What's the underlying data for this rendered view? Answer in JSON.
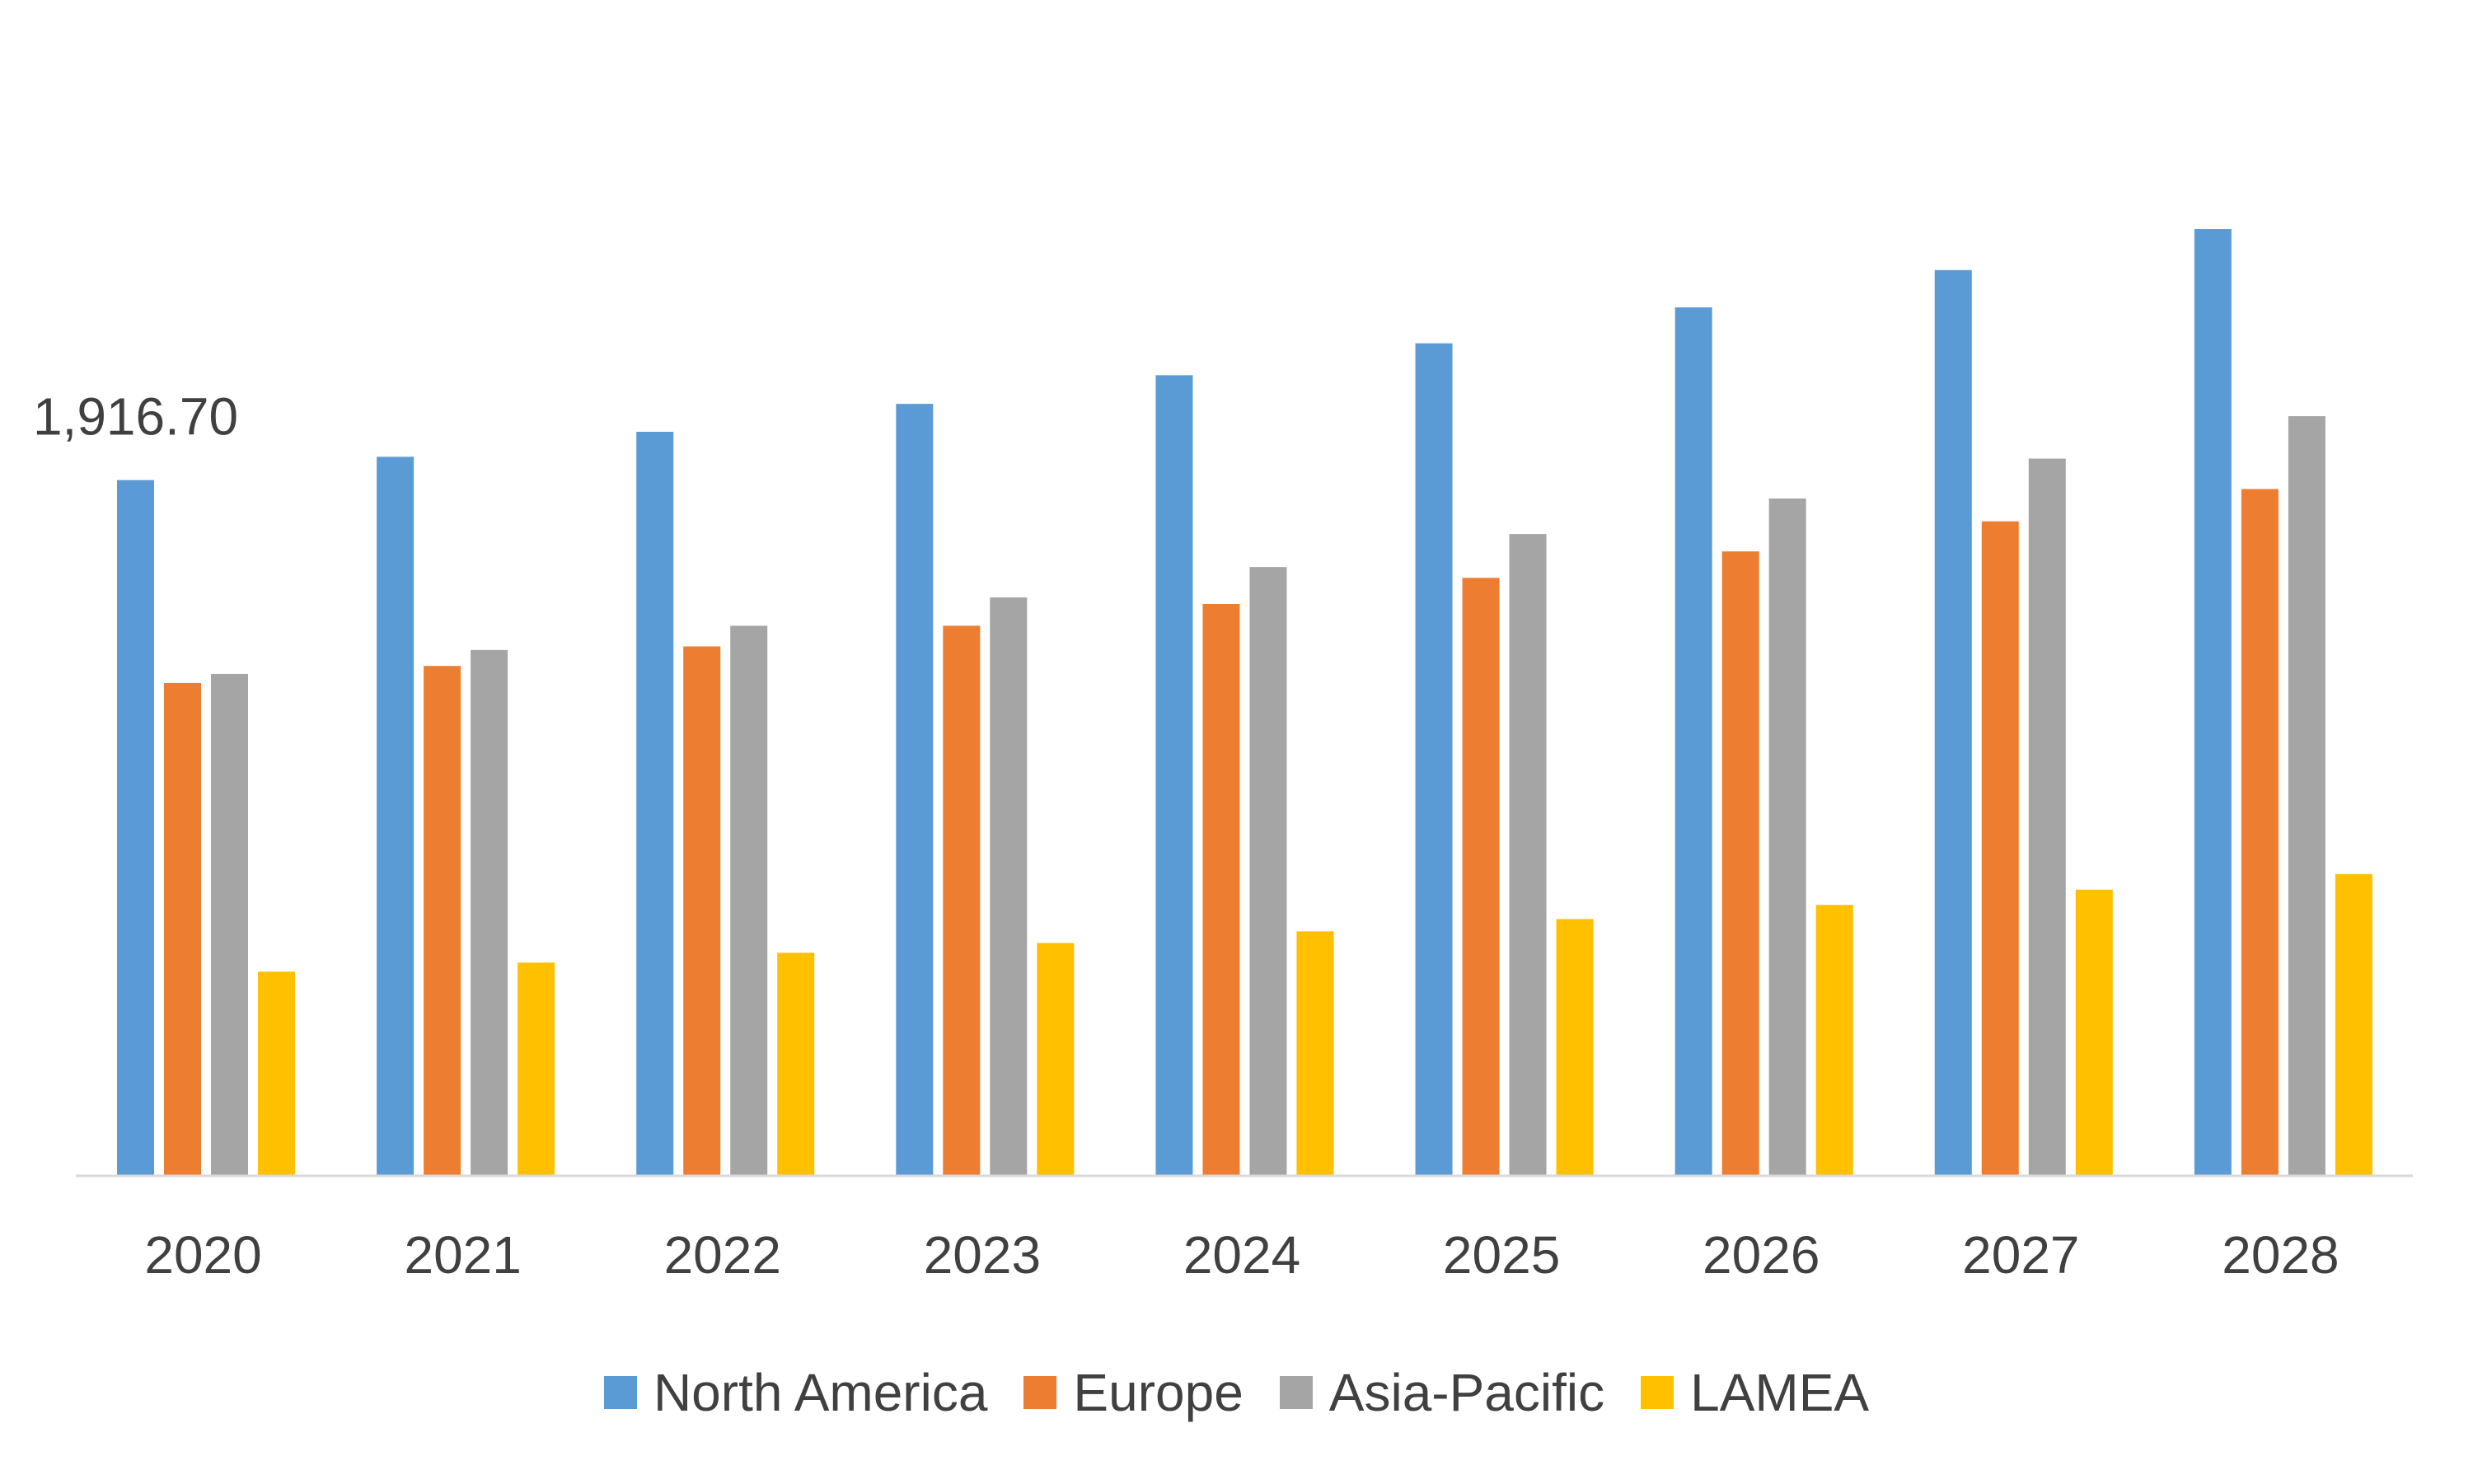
{
  "chart_data": {
    "type": "bar",
    "title": "",
    "xlabel": "",
    "ylabel": "",
    "grid": false,
    "legend_position": "bottom",
    "categories": [
      "2020",
      "2021",
      "2022",
      "2023",
      "2024",
      "2025",
      "2026",
      "2027",
      "2028"
    ],
    "series": [
      {
        "name": "North America",
        "color": "#5B9BD5",
        "values": [
          1916.7,
          1981,
          2050,
          2127,
          2206,
          2294,
          2393,
          2496,
          2609
        ]
      },
      {
        "name": "Europe",
        "color": "#ED7D31",
        "values": [
          1357,
          1404,
          1458,
          1515,
          1575,
          1647,
          1720,
          1803,
          1892
        ]
      },
      {
        "name": "Asia-Pacific",
        "color": "#A5A5A5",
        "values": [
          1382,
          1448,
          1515,
          1593,
          1677,
          1768,
          1866,
          1976,
          2093
        ]
      },
      {
        "name": "LAMEA",
        "color": "#FFC000",
        "values": [
          561,
          586,
          613,
          640,
          672,
          706,
          745,
          787,
          830
        ]
      }
    ],
    "data_labels": [
      {
        "series": 0,
        "index": 0,
        "text": "1,916.70"
      }
    ],
    "ylim": [
      0,
      3200
    ]
  }
}
